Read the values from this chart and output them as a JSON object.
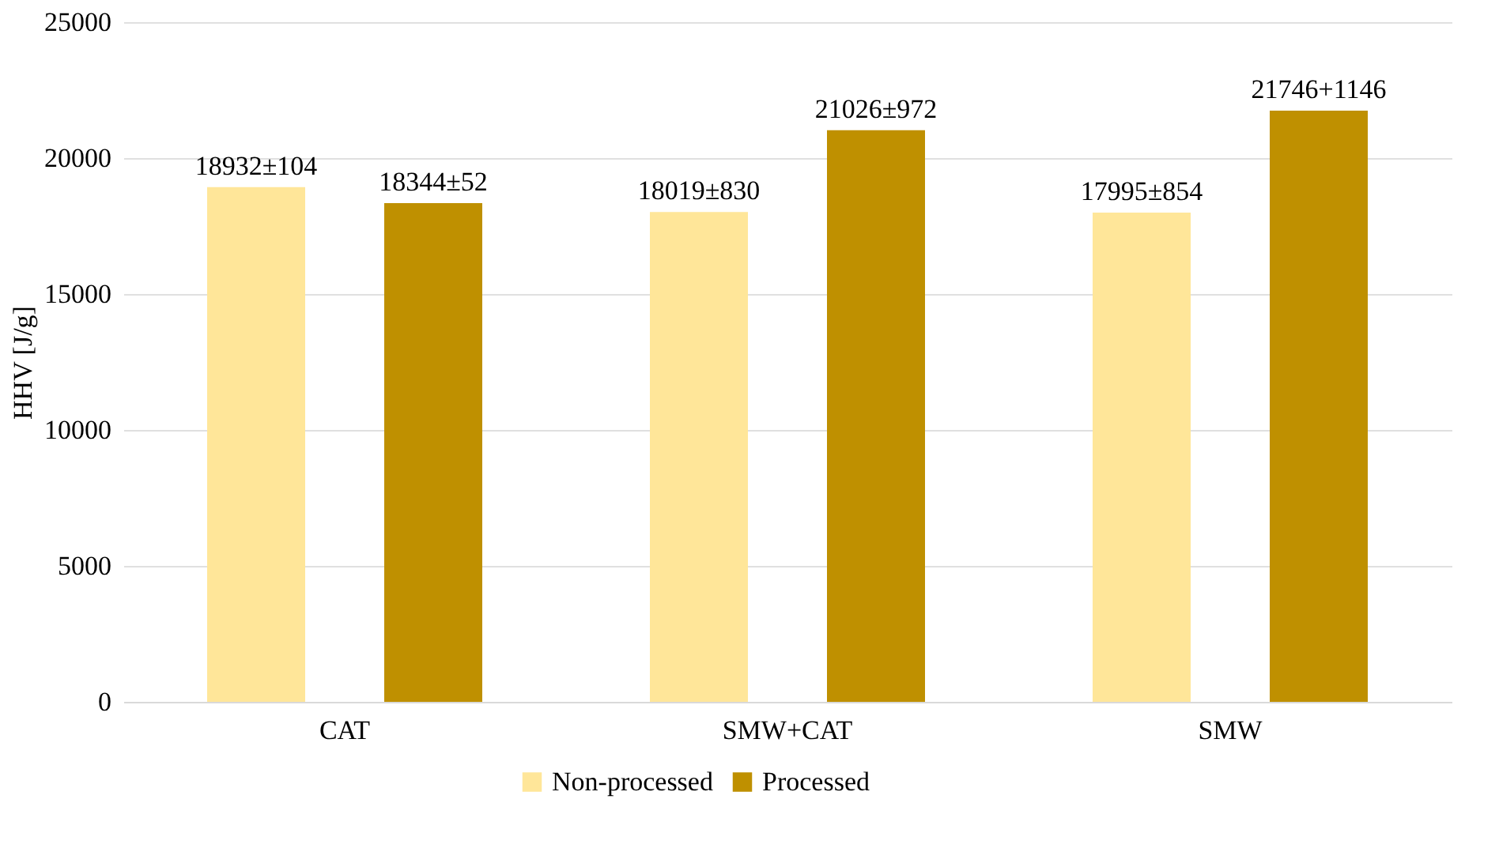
{
  "chart_data": {
    "type": "bar",
    "ylabel": "HHV [J/g]",
    "categories": [
      "CAT",
      "SMW+CAT",
      "SMW"
    ],
    "series": [
      {
        "name": "Non-processed",
        "color": "#ffe699",
        "values": [
          18932,
          18019,
          17995
        ],
        "value_labels": [
          "18932±104",
          "18019±830",
          "17995±854"
        ]
      },
      {
        "name": "Processed",
        "color": "#bf9000",
        "values": [
          18344,
          21026,
          21746
        ],
        "value_labels": [
          "18344±52",
          "21026±972",
          "21746+1146"
        ]
      }
    ],
    "ylim": [
      0,
      25000
    ],
    "yticks": [
      0,
      5000,
      10000,
      15000,
      20000,
      25000
    ],
    "grid": "y",
    "legend": "bottom"
  }
}
